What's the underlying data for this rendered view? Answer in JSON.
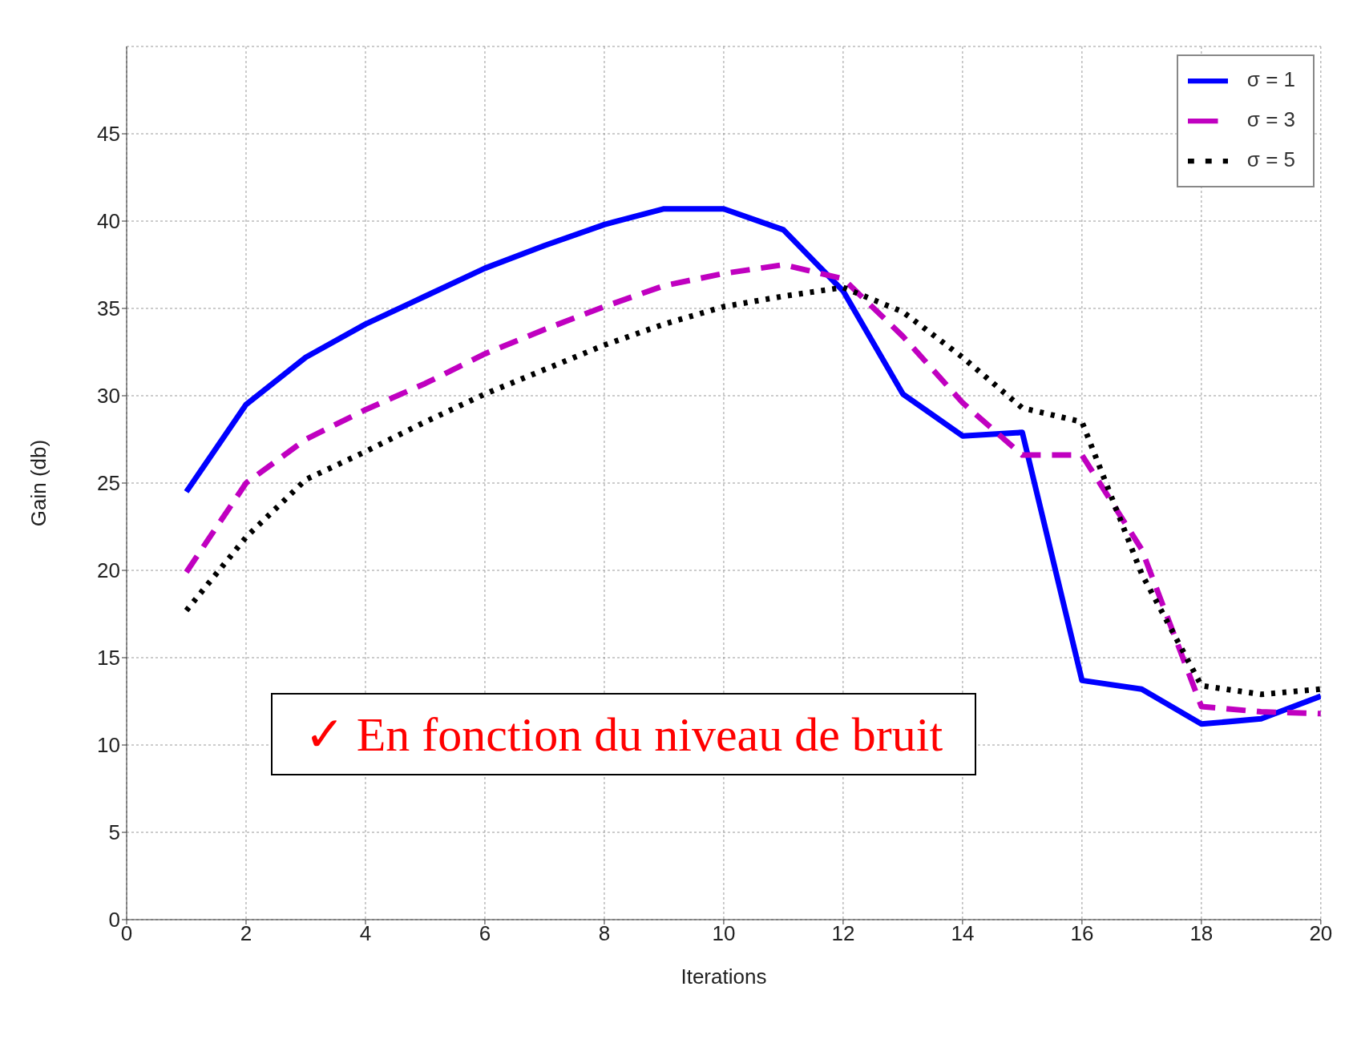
{
  "chart_data": {
    "type": "line",
    "xlabel": "Iterations",
    "ylabel": "Gain (db)",
    "x": [
      1,
      2,
      3,
      4,
      5,
      6,
      7,
      8,
      9,
      10,
      11,
      12,
      13,
      14,
      15,
      16,
      17,
      18,
      19,
      20
    ],
    "series": [
      {
        "name": "σ = 1",
        "color": "#0000ff",
        "line_style": "solid",
        "values": [
          24.5,
          29.5,
          32.2,
          34.1,
          35.7,
          37.3,
          38.6,
          39.8,
          40.7,
          40.7,
          39.5,
          36,
          30.1,
          27.7,
          27.9,
          13.7,
          13.2,
          11.2,
          11.5,
          12.8
        ]
      },
      {
        "name": "σ = 3",
        "color": "#c000c0",
        "line_style": "dashed",
        "values": [
          19.9,
          25,
          27.5,
          29.2,
          30.7,
          32.4,
          33.8,
          35.1,
          36.3,
          37,
          37.5,
          36.7,
          33.4,
          29.6,
          26.6,
          26.6,
          21.2,
          12.2,
          11.9,
          11.8
        ]
      },
      {
        "name": "σ = 5",
        "color": "#000000",
        "line_style": "dotted",
        "values": [
          17.7,
          21.9,
          25.2,
          26.8,
          28.5,
          30.1,
          31.5,
          32.9,
          34.1,
          35.1,
          35.7,
          36.2,
          34.8,
          32.2,
          29.3,
          28.5,
          19.8,
          13.4,
          12.9,
          13.2
        ]
      }
    ],
    "xlim": [
      0,
      20
    ],
    "xticks": [
      0,
      2,
      4,
      6,
      8,
      10,
      12,
      14,
      16,
      18,
      20
    ],
    "ylim": [
      0,
      50
    ],
    "yticks": [
      0,
      5,
      10,
      15,
      20,
      25,
      30,
      35,
      40,
      45
    ],
    "grid": true,
    "legend": "top right",
    "marker": "none",
    "annotations": [
      "✓ En fonction du niveau de bruit"
    ]
  }
}
